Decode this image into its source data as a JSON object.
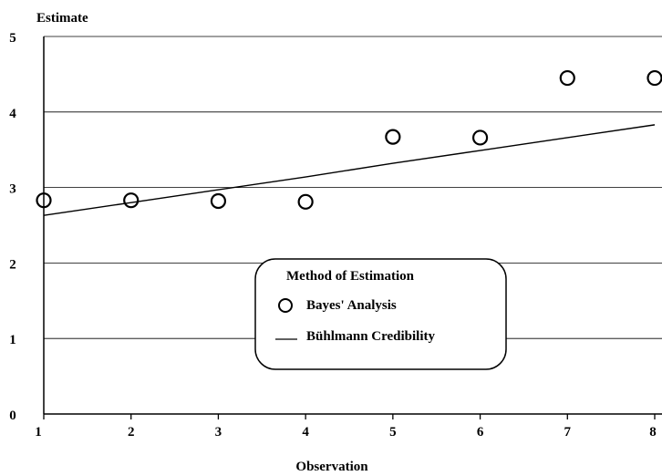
{
  "chart_data": {
    "type": "scatter",
    "title": "",
    "ylabel": "Estimate",
    "xlabel": "Observation",
    "x": [
      1,
      2,
      3,
      4,
      5,
      6,
      7,
      8
    ],
    "xlim": [
      1,
      8
    ],
    "ylim": [
      0,
      5
    ],
    "x_ticks": [
      "1",
      "2",
      "3",
      "4",
      "5",
      "6",
      "7",
      "8"
    ],
    "y_ticks": [
      "0",
      "1",
      "2",
      "3",
      "4",
      "5"
    ],
    "grid": "horizontal",
    "series": [
      {
        "name": "Bayes' Analysis",
        "kind": "scatter",
        "marker": "open-circle",
        "values": [
          2.83,
          2.83,
          2.82,
          2.81,
          3.67,
          3.66,
          4.45,
          4.45
        ]
      },
      {
        "name": "Bühlmann Credibility",
        "kind": "line",
        "values": [
          2.63,
          2.8,
          2.97,
          3.14,
          3.32,
          3.49,
          3.66,
          3.83
        ]
      }
    ],
    "legend": {
      "title": "Method of Estimation",
      "placement": "center-right"
    }
  }
}
